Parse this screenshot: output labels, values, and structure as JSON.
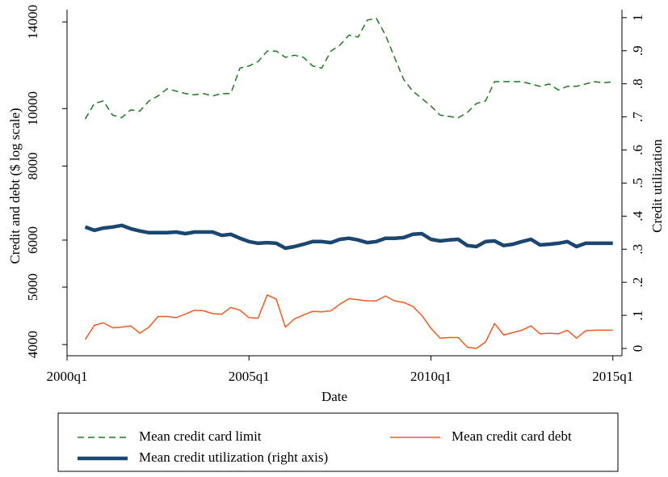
{
  "chart_data": {
    "type": "line",
    "x_label": "Date",
    "y_label": "Credit and debt ($ log scale)",
    "y2_label": "Credit utilization",
    "x": [
      "2000q3",
      "2000q4",
      "2001q1",
      "2001q2",
      "2001q3",
      "2001q4",
      "2002q1",
      "2002q2",
      "2002q3",
      "2002q4",
      "2003q1",
      "2003q2",
      "2003q3",
      "2003q4",
      "2004q1",
      "2004q2",
      "2004q3",
      "2004q4",
      "2005q1",
      "2005q2",
      "2005q3",
      "2005q4",
      "2006q1",
      "2006q2",
      "2006q3",
      "2006q4",
      "2007q1",
      "2007q2",
      "2007q3",
      "2007q4",
      "2008q1",
      "2008q2",
      "2008q3",
      "2008q4",
      "2009q1",
      "2009q2",
      "2009q3",
      "2009q4",
      "2010q1",
      "2010q2",
      "2010q3",
      "2010q4",
      "2011q1",
      "2011q2",
      "2011q3",
      "2011q4",
      "2012q1",
      "2012q2",
      "2012q3",
      "2012q4",
      "2013q1",
      "2013q2",
      "2013q3",
      "2013q4",
      "2014q1",
      "2014q2",
      "2014q3",
      "2014q4",
      "2015q1"
    ],
    "xlim": [
      "2000q1",
      "2015q2"
    ],
    "xticks": [
      "2000q1",
      "2005q1",
      "2010q1",
      "2015q1"
    ],
    "ylim": [
      3830,
      14680
    ],
    "ylog": true,
    "yticks": [
      4000,
      5000,
      6000,
      8000,
      10000,
      14000
    ],
    "y2lim": [
      -0.022,
      1.024
    ],
    "y2ticks": [
      0,
      {
        "value": 0.1,
        "label": ".1"
      },
      {
        "value": 0.2,
        "label": ".2"
      },
      {
        "value": 0.3,
        "label": ".3"
      },
      {
        "value": 0.4,
        "label": ".4"
      },
      {
        "value": 0.5,
        "label": ".5"
      },
      {
        "value": 0.6,
        "label": ".6"
      },
      {
        "value": 0.7,
        "label": ".7"
      },
      {
        "value": 0.8,
        "label": ".8"
      },
      {
        "value": 0.9,
        "label": ".9"
      },
      1
    ],
    "series": [
      {
        "name": "Mean credit card limit",
        "color": "#1f7a1f",
        "line_style": "dashed",
        "values": [
          9600,
          10200,
          10300,
          9750,
          9650,
          9950,
          9900,
          10300,
          10500,
          10800,
          10700,
          10600,
          10550,
          10600,
          10500,
          10600,
          10600,
          11700,
          11800,
          12000,
          12500,
          12500,
          12200,
          12300,
          12200,
          11800,
          11700,
          12500,
          12800,
          13300,
          13200,
          14100,
          14200,
          13300,
          12200,
          11200,
          10700,
          10400,
          10100,
          9750,
          9700,
          9650,
          9850,
          10200,
          10300,
          11100,
          11100,
          11100,
          11100,
          11000,
          10900,
          11000,
          10750,
          10900,
          10900,
          11000,
          11100,
          11050,
          11100
        ]
      },
      {
        "name": "Mean credit card debt",
        "color": "#f05a1e",
        "line_style": "solid",
        "values": [
          4080,
          4310,
          4350,
          4270,
          4280,
          4300,
          4180,
          4280,
          4460,
          4460,
          4440,
          4500,
          4570,
          4560,
          4510,
          4500,
          4620,
          4570,
          4440,
          4430,
          4850,
          4770,
          4280,
          4420,
          4490,
          4550,
          4540,
          4560,
          4680,
          4780,
          4760,
          4740,
          4740,
          4830,
          4740,
          4710,
          4640,
          4480,
          4260,
          4100,
          4110,
          4110,
          3960,
          3940,
          4040,
          4340,
          4150,
          4190,
          4230,
          4300,
          4170,
          4180,
          4170,
          4230,
          4100,
          4220,
          4230,
          4230,
          4230
        ]
      },
      {
        "name": "Mean credit utilization (right axis)",
        "color": "#1a4670",
        "line_style": "solid",
        "axis": "y2",
        "values": [
          0.367,
          0.357,
          0.364,
          0.367,
          0.372,
          0.362,
          0.355,
          0.35,
          0.35,
          0.35,
          0.352,
          0.347,
          0.352,
          0.352,
          0.352,
          0.342,
          0.345,
          0.333,
          0.323,
          0.318,
          0.32,
          0.318,
          0.303,
          0.308,
          0.315,
          0.323,
          0.323,
          0.32,
          0.33,
          0.333,
          0.328,
          0.32,
          0.323,
          0.333,
          0.333,
          0.335,
          0.345,
          0.347,
          0.33,
          0.325,
          0.328,
          0.33,
          0.311,
          0.308,
          0.323,
          0.325,
          0.311,
          0.315,
          0.323,
          0.33,
          0.313,
          0.315,
          0.318,
          0.323,
          0.308,
          0.318,
          0.318,
          0.318,
          0.318
        ]
      }
    ]
  }
}
